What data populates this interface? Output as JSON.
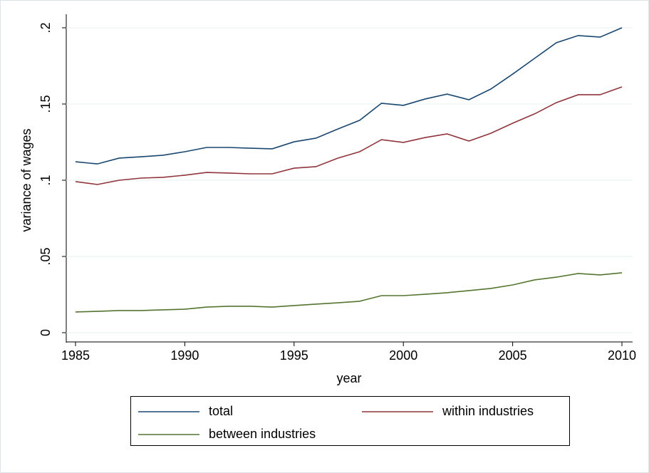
{
  "chart_data": {
    "type": "line",
    "xlabel": "year",
    "ylabel": "variance of wages",
    "x": [
      1985,
      1986,
      1987,
      1988,
      1989,
      1990,
      1991,
      1992,
      1993,
      1994,
      1995,
      1996,
      1997,
      1998,
      1999,
      2000,
      2001,
      2002,
      2003,
      2004,
      2005,
      2006,
      2007,
      2008,
      2009,
      2010
    ],
    "series": [
      {
        "name": "total",
        "color": "#1a476f",
        "values": [
          0.1121,
          0.1107,
          0.1145,
          0.1154,
          0.1164,
          0.1187,
          0.1215,
          0.1215,
          0.121,
          0.1206,
          0.1252,
          0.1276,
          0.1336,
          0.1393,
          0.1505,
          0.1491,
          0.1533,
          0.1565,
          0.1528,
          0.1598,
          0.1696,
          0.1799,
          0.1902,
          0.1949,
          0.1939,
          0.2
        ]
      },
      {
        "name": "within industries",
        "color": "#90353b",
        "values": [
          0.0991,
          0.0972,
          0.1,
          0.1014,
          0.1019,
          0.1033,
          0.1051,
          0.1047,
          0.1042,
          0.1042,
          0.1079,
          0.1089,
          0.1145,
          0.1187,
          0.1266,
          0.1248,
          0.128,
          0.1304,
          0.1257,
          0.1308,
          0.1374,
          0.1435,
          0.1509,
          0.1561,
          0.1561,
          0.1612
        ]
      },
      {
        "name": "between industries",
        "color": "#55752f",
        "values": [
          0.0136,
          0.014,
          0.0145,
          0.0145,
          0.015,
          0.0154,
          0.0168,
          0.0173,
          0.0173,
          0.0168,
          0.0178,
          0.0187,
          0.0196,
          0.0206,
          0.0243,
          0.0243,
          0.0252,
          0.0262,
          0.0276,
          0.029,
          0.0313,
          0.0346,
          0.0364,
          0.0388,
          0.0379,
          0.0393
        ]
      }
    ],
    "xlim": [
      1985,
      2010
    ],
    "xticks": [
      1985,
      1990,
      1995,
      2000,
      2005,
      2010
    ],
    "ylim": [
      0,
      0.2
    ],
    "yticks": [
      0,
      {
        "value": 0.05,
        "label": ".05"
      },
      {
        "value": 0.1,
        "label": ".1"
      },
      {
        "value": 0.15,
        "label": ".15"
      },
      {
        "value": 0.2,
        "label": ".2"
      }
    ],
    "grid": true,
    "legend": "bottom"
  }
}
